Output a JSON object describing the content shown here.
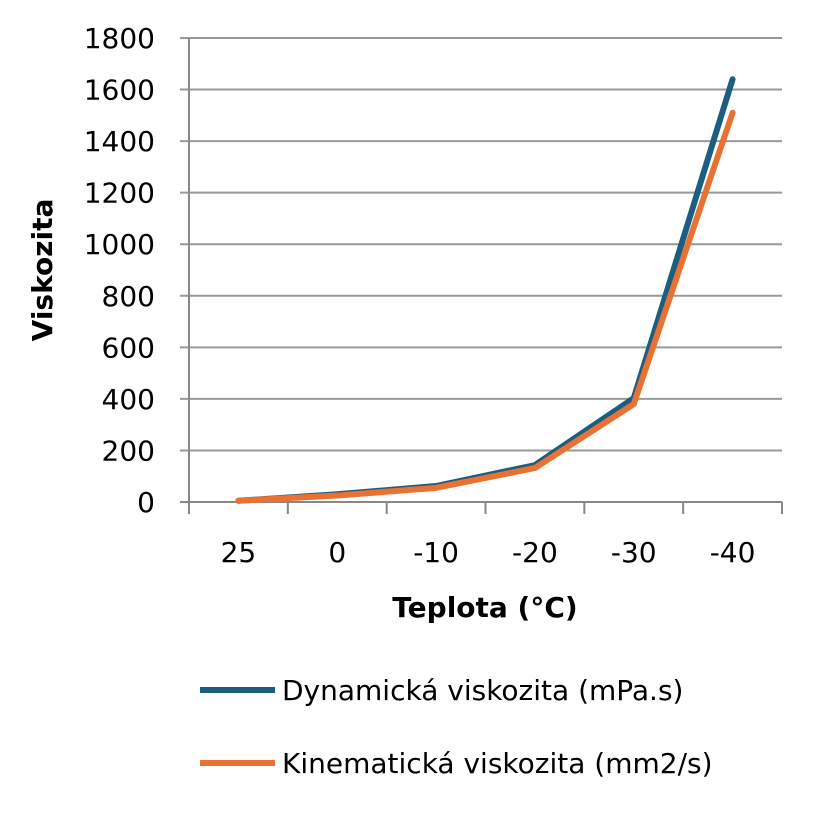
{
  "chart_data": {
    "type": "line",
    "xlabel": "Teplota (°C)",
    "ylabel": "Viskozita",
    "categories": [
      "25",
      "0",
      "-10",
      "-20",
      "-30",
      "-40"
    ],
    "ylim": [
      0,
      1800
    ],
    "yticks": [
      0,
      200,
      400,
      600,
      800,
      1000,
      1200,
      1400,
      1600,
      1800
    ],
    "grid": true,
    "legend": "bottom",
    "series": [
      {
        "name": "Dynamická viskozita (mPa.s)",
        "color": "#1b5e7f",
        "values": [
          5,
          30,
          62,
          143,
          403,
          1640
        ]
      },
      {
        "name": "Kinematická viskozita (mm2/s)",
        "color": "#e97132",
        "values": [
          5,
          25,
          55,
          132,
          380,
          1510
        ]
      }
    ]
  }
}
